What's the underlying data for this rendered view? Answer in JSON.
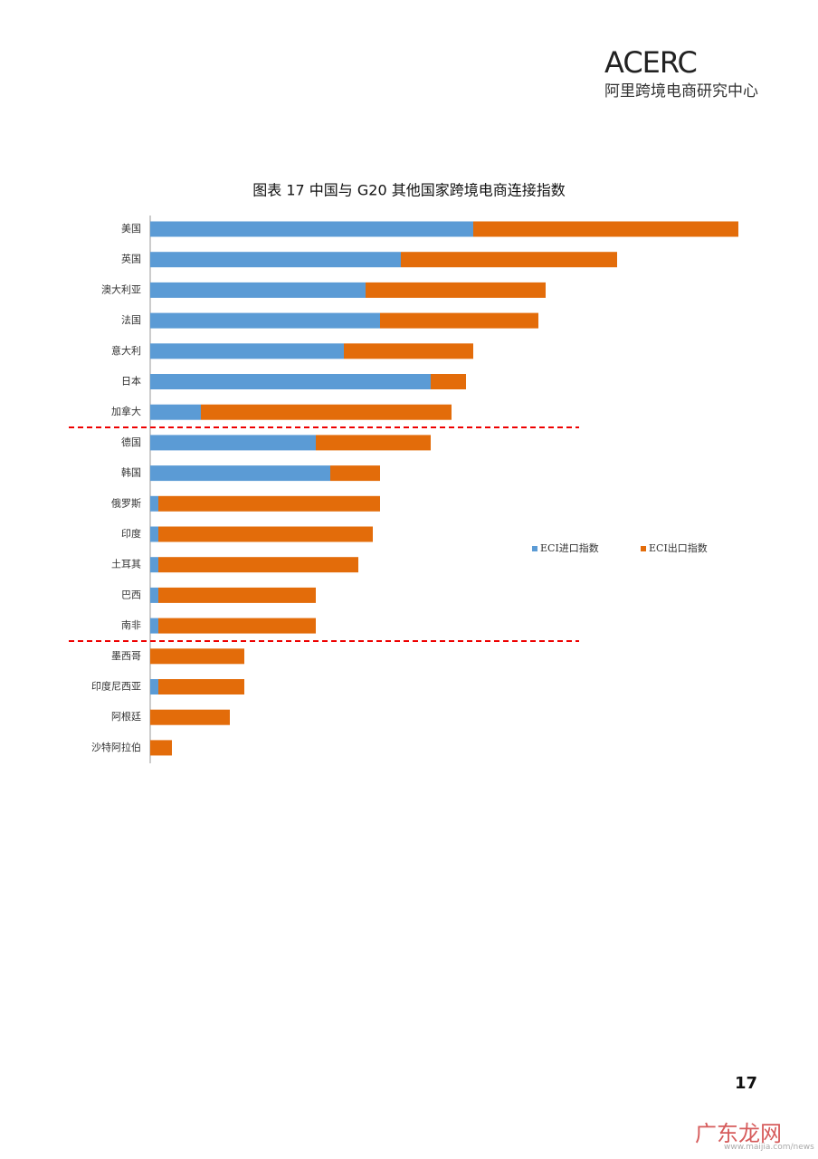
{
  "header": {
    "logo": "ACERC",
    "org": "阿里跨境电商研究中心"
  },
  "chart_data": {
    "type": "stacked-barh",
    "title": "图表 17   中国与 G20 其他国家跨境电商连接指数",
    "categories": [
      "美国",
      "英国",
      "澳大利亚",
      "法国",
      "意大利",
      "日本",
      "加拿大",
      "德国",
      "韩国",
      "俄罗斯",
      "印度",
      "土耳其",
      "巴西",
      "南非",
      "墨西哥",
      "印度尼西亚",
      "阿根廷",
      "沙特阿拉伯"
    ],
    "series": [
      {
        "name": "ECI进口指数",
        "color": "#5b9bd5",
        "values": [
          35.7,
          27.7,
          23.8,
          25.4,
          21.4,
          31.0,
          5.6,
          18.3,
          19.9,
          0.9,
          0.9,
          0.9,
          0.9,
          0.9,
          0,
          0.9,
          0,
          0
        ]
      },
      {
        "name": "ECI出口指数",
        "color": "#e36c0a",
        "values": [
          29.3,
          23.9,
          19.9,
          17.5,
          14.3,
          3.9,
          27.7,
          12.7,
          5.5,
          24.5,
          23.7,
          22.1,
          17.4,
          17.4,
          10.4,
          9.5,
          8.8,
          2.4
        ]
      }
    ]
  },
  "page_number": "17",
  "watermark": {
    "text": "广东龙网",
    "url": "www.maijia.com/news"
  }
}
